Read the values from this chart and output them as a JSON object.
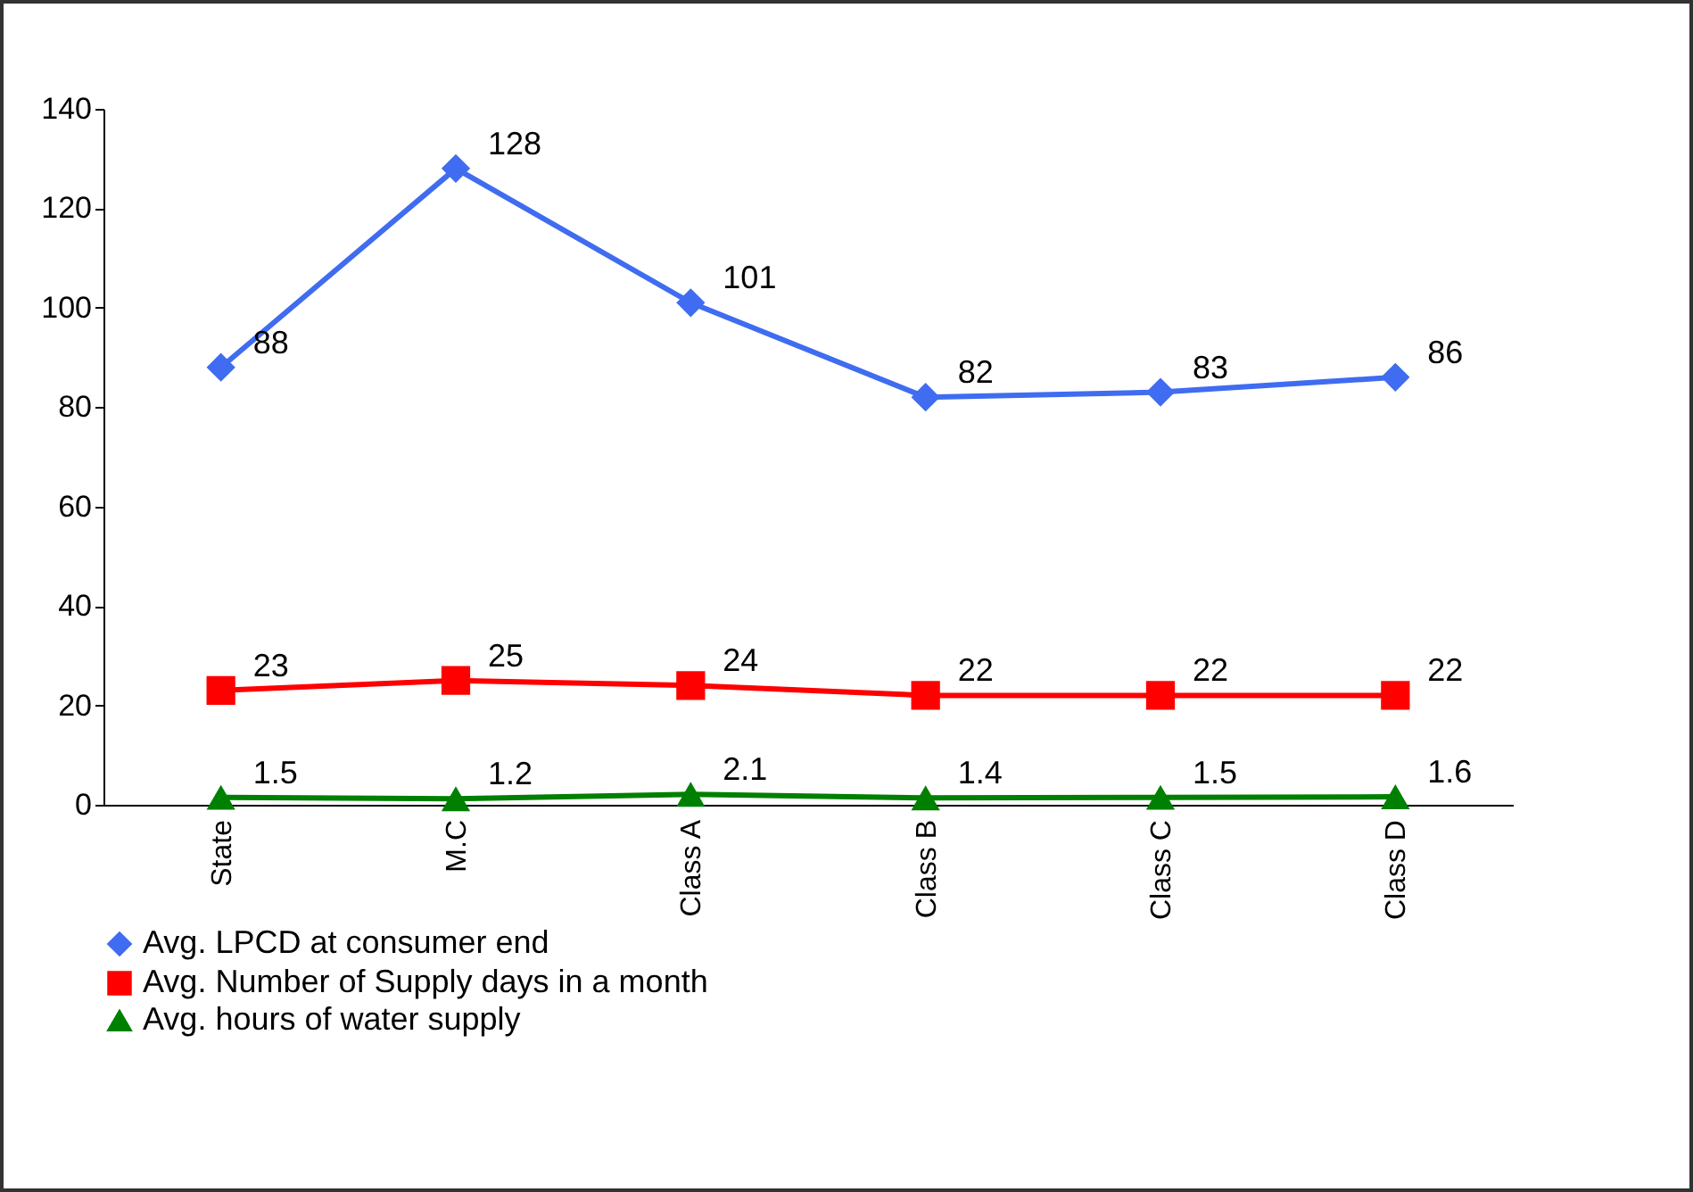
{
  "chart_data": {
    "type": "line",
    "categories": [
      "State",
      "M.C",
      "Class A",
      "Class B",
      "Class C",
      "Class D"
    ],
    "series": [
      {
        "name": "Avg. LPCD at consumer end",
        "color": "#3f6cf0",
        "marker": "diamond",
        "values": [
          88,
          128,
          101,
          82,
          83,
          86
        ]
      },
      {
        "name": "Avg. Number of Supply days in a month",
        "color": "#ff0000",
        "marker": "square",
        "values": [
          23,
          25,
          24,
          22,
          22,
          22
        ]
      },
      {
        "name": "Avg. hours of water supply",
        "color": "#008000",
        "marker": "triangle",
        "values": [
          1.5,
          1.2,
          2.1,
          1.4,
          1.5,
          1.6
        ]
      }
    ],
    "ylim": [
      0,
      140
    ],
    "yticks": [
      0,
      20,
      40,
      60,
      80,
      100,
      120,
      140
    ],
    "grid": false,
    "legend": "bottom",
    "data_labels": true,
    "line_style": "solid"
  }
}
